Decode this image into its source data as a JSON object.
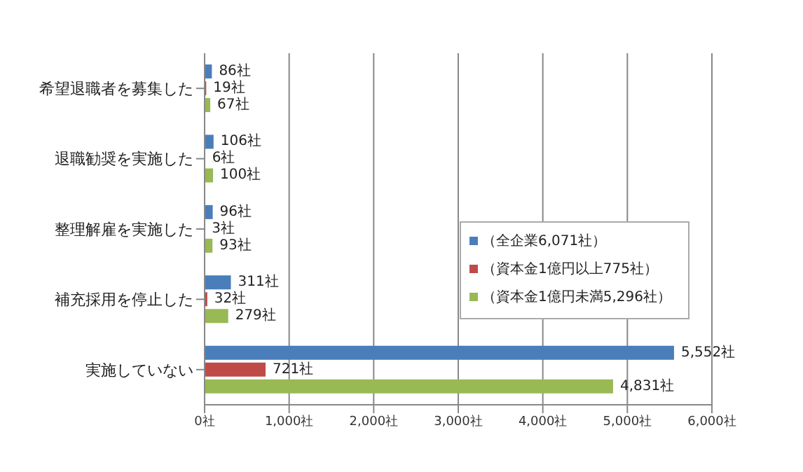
{
  "chart_data": {
    "type": "bar",
    "orientation": "horizontal",
    "categories": [
      "希望退職者を募集した",
      "退職勧奨を実施した",
      "整理解雇を実施した",
      "補充採用を停止した",
      "実施していない"
    ],
    "series": [
      {
        "name": "（全企業6,071社）",
        "color": "#4a7ebb",
        "values": [
          86,
          106,
          96,
          311,
          5552
        ],
        "value_labels": [
          "86社",
          "106社",
          "96社",
          "311社",
          "5,552社"
        ]
      },
      {
        "name": "（資本金1億円以上775社）",
        "color": "#be4b48",
        "values": [
          19,
          6,
          3,
          32,
          721
        ],
        "value_labels": [
          "19社",
          "6社",
          "3社",
          "32社",
          "721社"
        ]
      },
      {
        "name": "（資本金1億円未満5,296社）",
        "color": "#98b954",
        "values": [
          67,
          100,
          93,
          279,
          4831
        ],
        "value_labels": [
          "67社",
          "100社",
          "93社",
          "279社",
          "4,831社"
        ]
      }
    ],
    "xlim": [
      0,
      6000
    ],
    "xticks": [
      {
        "value": 0,
        "label": "0社"
      },
      {
        "value": 1000,
        "label": "1,000社"
      },
      {
        "value": 2000,
        "label": "2,000社"
      },
      {
        "value": 3000,
        "label": "3,000社"
      },
      {
        "value": 4000,
        "label": "4,000社"
      },
      {
        "value": 5000,
        "label": "5,000社"
      },
      {
        "value": 6000,
        "label": "6,000社"
      }
    ],
    "grid": "x",
    "legend": "right"
  }
}
